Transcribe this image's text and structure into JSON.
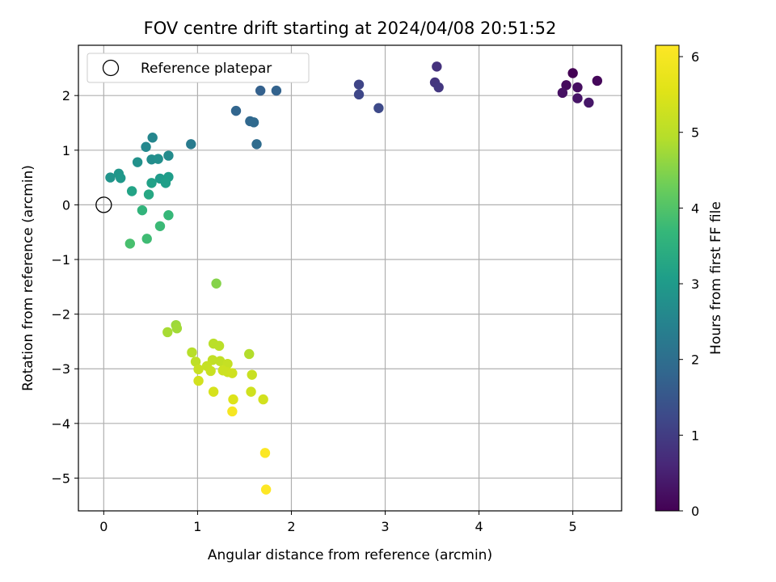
{
  "chart_data": {
    "type": "scatter",
    "title": "FOV centre drift starting at 2024/04/08 20:51:52",
    "xlabel": "Angular distance from reference (arcmin)",
    "ylabel": "Rotation from reference (arcmin)",
    "xlim": [
      -0.27,
      5.52
    ],
    "ylim": [
      -5.6,
      2.92
    ],
    "xticks": [
      0,
      1,
      2,
      3,
      4,
      5
    ],
    "yticks": [
      -5,
      -4,
      -3,
      -2,
      -1,
      0,
      1,
      2
    ],
    "xtick_labels": [
      "0",
      "1",
      "2",
      "3",
      "4",
      "5"
    ],
    "ytick_labels": [
      "−5",
      "−4",
      "−3",
      "−2",
      "−1",
      "0",
      "1",
      "2"
    ],
    "grid": true,
    "colorbar": {
      "label": "Hours from first FF file",
      "colormap": "viridis",
      "range": [
        0,
        6.15
      ],
      "ticks": [
        0,
        1,
        2,
        3,
        4,
        5,
        6
      ],
      "tick_labels": [
        "0",
        "1",
        "2",
        "3",
        "4",
        "5",
        "6"
      ]
    },
    "legend": {
      "placement": "top-left",
      "entries": [
        {
          "label": "Reference platepar",
          "marker": "open-circle"
        }
      ]
    },
    "reference_point": {
      "x": 0,
      "y": 0
    },
    "points": [
      {
        "x": 5.0,
        "y": 2.41,
        "hours": 0.0
      },
      {
        "x": 5.26,
        "y": 2.27,
        "hours": 0.1
      },
      {
        "x": 4.93,
        "y": 2.19,
        "hours": 0.15
      },
      {
        "x": 5.05,
        "y": 2.15,
        "hours": 0.2
      },
      {
        "x": 4.89,
        "y": 2.05,
        "hours": 0.25
      },
      {
        "x": 5.05,
        "y": 1.95,
        "hours": 0.3
      },
      {
        "x": 5.17,
        "y": 1.87,
        "hours": 0.35
      },
      {
        "x": 3.55,
        "y": 2.53,
        "hours": 0.8
      },
      {
        "x": 3.53,
        "y": 2.24,
        "hours": 0.85
      },
      {
        "x": 3.57,
        "y": 2.15,
        "hours": 0.9
      },
      {
        "x": 2.72,
        "y": 2.2,
        "hours": 1.15
      },
      {
        "x": 2.72,
        "y": 2.02,
        "hours": 1.2
      },
      {
        "x": 2.93,
        "y": 1.77,
        "hours": 1.25
      },
      {
        "x": 1.67,
        "y": 2.09,
        "hours": 1.7
      },
      {
        "x": 1.84,
        "y": 2.09,
        "hours": 1.75
      },
      {
        "x": 1.41,
        "y": 1.72,
        "hours": 1.8
      },
      {
        "x": 1.56,
        "y": 1.53,
        "hours": 1.85
      },
      {
        "x": 1.6,
        "y": 1.51,
        "hours": 1.9
      },
      {
        "x": 1.63,
        "y": 1.11,
        "hours": 1.95
      },
      {
        "x": 0.93,
        "y": 1.11,
        "hours": 2.3
      },
      {
        "x": 0.52,
        "y": 1.23,
        "hours": 2.55
      },
      {
        "x": 0.45,
        "y": 1.06,
        "hours": 2.6
      },
      {
        "x": 0.69,
        "y": 0.9,
        "hours": 2.65
      },
      {
        "x": 0.51,
        "y": 0.83,
        "hours": 2.7
      },
      {
        "x": 0.58,
        "y": 0.84,
        "hours": 2.75
      },
      {
        "x": 0.36,
        "y": 0.78,
        "hours": 2.8
      },
      {
        "x": 0.07,
        "y": 0.5,
        "hours": 2.85
      },
      {
        "x": 0.16,
        "y": 0.57,
        "hours": 2.9
      },
      {
        "x": 0.18,
        "y": 0.49,
        "hours": 2.95
      },
      {
        "x": 0.6,
        "y": 0.48,
        "hours": 3.0
      },
      {
        "x": 0.69,
        "y": 0.51,
        "hours": 3.05
      },
      {
        "x": 0.66,
        "y": 0.4,
        "hours": 3.1
      },
      {
        "x": 0.51,
        "y": 0.4,
        "hours": 3.15
      },
      {
        "x": 0.3,
        "y": 0.25,
        "hours": 3.2
      },
      {
        "x": 0.48,
        "y": 0.19,
        "hours": 3.3
      },
      {
        "x": 0.41,
        "y": -0.1,
        "hours": 3.6
      },
      {
        "x": 0.69,
        "y": -0.19,
        "hours": 3.7
      },
      {
        "x": 0.6,
        "y": -0.39,
        "hours": 3.75
      },
      {
        "x": 0.46,
        "y": -0.62,
        "hours": 3.8
      },
      {
        "x": 0.28,
        "y": -0.71,
        "hours": 3.9
      },
      {
        "x": 1.2,
        "y": -1.44,
        "hours": 4.5
      },
      {
        "x": 0.77,
        "y": -2.2,
        "hours": 4.7
      },
      {
        "x": 0.78,
        "y": -2.26,
        "hours": 4.75
      },
      {
        "x": 0.68,
        "y": -2.33,
        "hours": 4.8
      },
      {
        "x": 1.17,
        "y": -2.54,
        "hours": 5.0
      },
      {
        "x": 1.23,
        "y": -2.58,
        "hours": 5.0
      },
      {
        "x": 1.55,
        "y": -2.73,
        "hours": 4.9
      },
      {
        "x": 0.94,
        "y": -2.7,
        "hours": 4.95
      },
      {
        "x": 0.98,
        "y": -2.87,
        "hours": 5.05
      },
      {
        "x": 1.16,
        "y": -2.84,
        "hours": 5.1
      },
      {
        "x": 1.24,
        "y": -2.86,
        "hours": 5.1
      },
      {
        "x": 1.32,
        "y": -2.91,
        "hours": 5.15
      },
      {
        "x": 1.1,
        "y": -2.95,
        "hours": 5.15
      },
      {
        "x": 1.01,
        "y": -3.01,
        "hours": 5.2
      },
      {
        "x": 1.14,
        "y": -3.04,
        "hours": 5.2
      },
      {
        "x": 1.27,
        "y": -3.03,
        "hours": 5.25
      },
      {
        "x": 1.32,
        "y": -3.06,
        "hours": 5.25
      },
      {
        "x": 1.37,
        "y": -3.08,
        "hours": 5.3
      },
      {
        "x": 1.58,
        "y": -3.11,
        "hours": 5.2
      },
      {
        "x": 1.01,
        "y": -3.22,
        "hours": 5.35
      },
      {
        "x": 1.57,
        "y": -3.42,
        "hours": 5.3
      },
      {
        "x": 1.17,
        "y": -3.42,
        "hours": 5.4
      },
      {
        "x": 1.7,
        "y": -3.56,
        "hours": 5.35
      },
      {
        "x": 1.38,
        "y": -3.56,
        "hours": 5.5
      },
      {
        "x": 1.37,
        "y": -3.78,
        "hours": 6.0
      },
      {
        "x": 1.72,
        "y": -4.54,
        "hours": 6.1
      },
      {
        "x": 1.73,
        "y": -5.21,
        "hours": 6.15
      }
    ]
  }
}
